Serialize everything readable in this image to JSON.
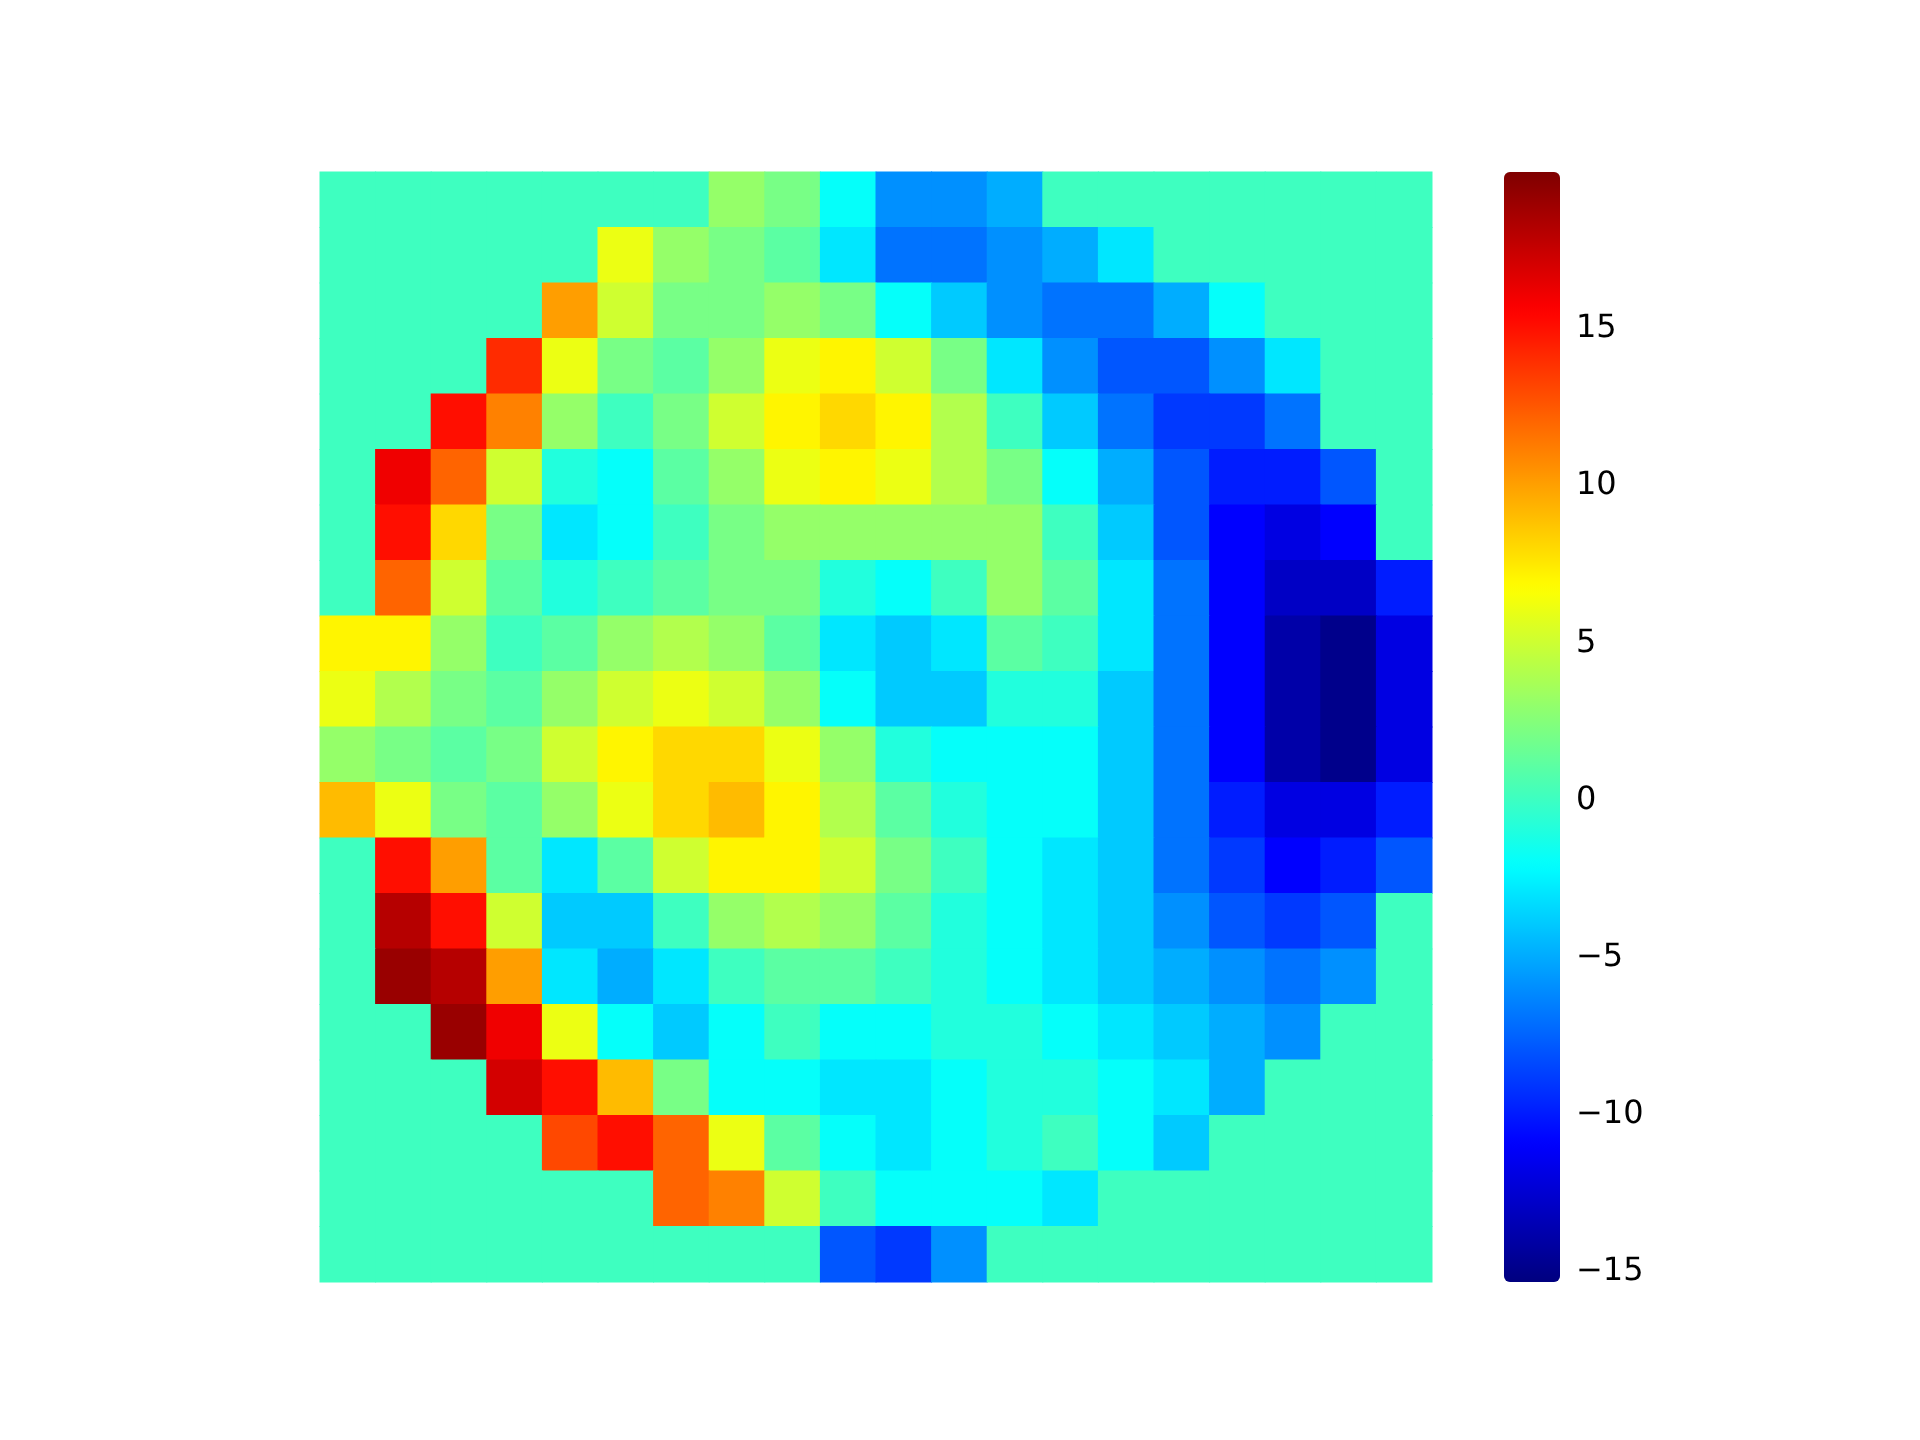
{
  "chart_data": {
    "type": "heatmap",
    "tick_labels": false,
    "categories": [
      null,
      null,
      null,
      null,
      null,
      null,
      null,
      null,
      null,
      null,
      null,
      null,
      null,
      null,
      null,
      null,
      null,
      null,
      null,
      null
    ],
    "y_categories": [
      null,
      null,
      null,
      null,
      null,
      null,
      null,
      null,
      null,
      null,
      null,
      null,
      null,
      null,
      null,
      null,
      null,
      null,
      null,
      null
    ],
    "clim": [
      -15.4,
      19.9
    ],
    "cticks": [
      -15,
      -10,
      -5,
      0,
      5,
      10,
      15
    ],
    "cells": [
      [
        0,
        0,
        0,
        0,
        0,
        0,
        0,
        3,
        2,
        -2,
        -6,
        -6,
        -5,
        0,
        0,
        0,
        0,
        0,
        0,
        0
      ],
      [
        0,
        0,
        0,
        0,
        0,
        6,
        3,
        2,
        1,
        -3,
        -7,
        -7,
        -6,
        -5,
        -3,
        0,
        0,
        0,
        0,
        0
      ],
      [
        0,
        0,
        0,
        0,
        10,
        5,
        2,
        2,
        3,
        2,
        -2,
        -4,
        -6,
        -7,
        -7,
        -5,
        -2,
        0,
        0,
        0
      ],
      [
        0,
        0,
        0,
        14,
        6,
        2,
        1,
        3,
        6,
        7,
        5,
        2,
        -3,
        -6,
        -8,
        -8,
        -6,
        -3,
        0,
        0
      ],
      [
        0,
        0,
        15,
        11,
        3,
        0,
        2,
        5,
        7,
        8,
        7,
        4,
        0,
        -4,
        -7,
        -9,
        -9,
        -7,
        0,
        0
      ],
      [
        0,
        16,
        12,
        5,
        -1,
        -2,
        1,
        3,
        6,
        7,
        6,
        4,
        2,
        -2,
        -5,
        -8,
        -10,
        -10,
        -8,
        0
      ],
      [
        0,
        15,
        8,
        2,
        -3,
        -2,
        0,
        2,
        3,
        3,
        3,
        3,
        3,
        0,
        -4,
        -8,
        -11,
        -12,
        -11,
        0
      ],
      [
        0,
        12,
        5,
        1,
        -1,
        0,
        1,
        2,
        2,
        -1,
        -2,
        0,
        3,
        1,
        -3,
        -7,
        -11,
        -13,
        -13,
        -10
      ],
      [
        7,
        7,
        3,
        0,
        1,
        3,
        4,
        3,
        1,
        -3,
        -4,
        -3,
        1,
        0,
        -3,
        -7,
        -11,
        -14,
        -15,
        -12
      ],
      [
        6,
        4,
        2,
        1,
        3,
        5,
        6,
        5,
        3,
        -2,
        -4,
        -4,
        -1,
        -1,
        -4,
        -7,
        -11,
        -14,
        -15,
        -12
      ],
      [
        3,
        2,
        1,
        2,
        5,
        7,
        8,
        8,
        6,
        3,
        -1,
        -2,
        -2,
        -2,
        -4,
        -7,
        -11,
        -14,
        -15,
        -12
      ],
      [
        9,
        6,
        2,
        1,
        3,
        6,
        8,
        9,
        7,
        4,
        1,
        -1,
        -2,
        -2,
        -4,
        -7,
        -10,
        -12,
        -12,
        -10
      ],
      [
        0,
        15,
        10,
        1,
        -3,
        1,
        5,
        7,
        7,
        5,
        2,
        0,
        -2,
        -3,
        -4,
        -7,
        -9,
        -11,
        -10,
        -8
      ],
      [
        0,
        18,
        15,
        5,
        -4,
        -4,
        0,
        3,
        4,
        3,
        1,
        -1,
        -2,
        -3,
        -4,
        -6,
        -8,
        -9,
        -8,
        0
      ],
      [
        0,
        19,
        18,
        10,
        -3,
        -5,
        -3,
        0,
        1,
        1,
        0,
        -1,
        -2,
        -3,
        -4,
        -5,
        -6,
        -7,
        -6,
        0
      ],
      [
        0,
        0,
        19,
        16,
        6,
        -2,
        -4,
        -2,
        0,
        -2,
        -2,
        -1,
        -1,
        -2,
        -3,
        -4,
        -5,
        -6,
        0,
        0
      ],
      [
        0,
        0,
        0,
        17,
        15,
        9,
        2,
        -2,
        -2,
        -3,
        -3,
        -2,
        -1,
        -1,
        -2,
        -3,
        -5,
        0,
        0,
        0
      ],
      [
        0,
        0,
        0,
        0,
        13,
        15,
        12,
        6,
        1,
        -2,
        -3,
        -2,
        -1,
        0,
        -2,
        -4,
        0,
        0,
        0,
        0
      ],
      [
        0,
        0,
        0,
        0,
        0,
        0,
        12,
        11,
        5,
        0,
        -2,
        -2,
        -2,
        -3,
        0,
        0,
        0,
        0,
        0,
        0
      ],
      [
        0,
        0,
        0,
        0,
        0,
        0,
        0,
        0,
        0,
        -8,
        -9,
        -6,
        0,
        0,
        0,
        0,
        0,
        0,
        0,
        0
      ]
    ]
  }
}
